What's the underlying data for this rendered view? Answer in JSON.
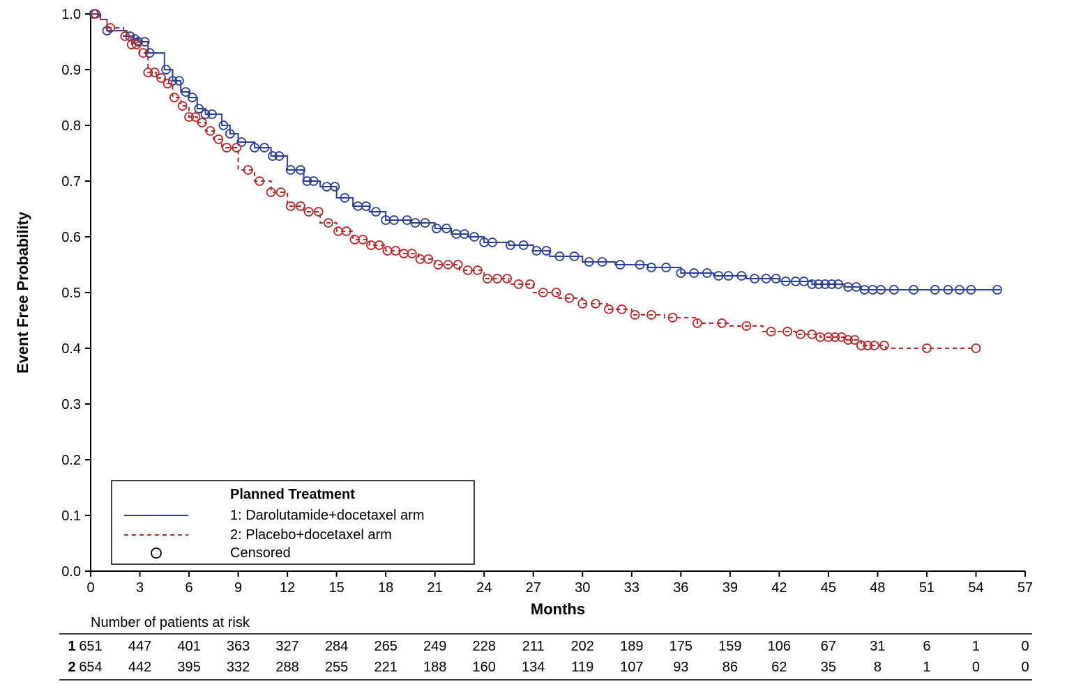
{
  "chart": {
    "type": "kaplan-meier",
    "background_color": "#ffffff",
    "axis_color": "#000000",
    "tick_color": "#000000",
    "tick_fontsize": 20,
    "label_fontsize": 22,
    "ylabel": "Event Free Probability",
    "xlabel": "Months",
    "xlim": [
      0,
      57
    ],
    "ylim": [
      0.0,
      1.0
    ],
    "xticks": [
      0,
      3,
      6,
      9,
      12,
      15,
      18,
      21,
      24,
      27,
      30,
      33,
      36,
      39,
      42,
      45,
      48,
      51,
      54,
      57
    ],
    "yticks": [
      0.0,
      0.1,
      0.2,
      0.3,
      0.4,
      0.5,
      0.6,
      0.7,
      0.8,
      0.9,
      1.0
    ],
    "censor_marker": {
      "shape": "circle",
      "radius": 6,
      "stroke_width": 1.8,
      "fill": "none"
    },
    "series": [
      {
        "id": 1,
        "label": "1: Darolutamide+docetaxel arm",
        "color": "#2a3f9e",
        "dash": "solid",
        "line_width": 2.0,
        "step_points": [
          [
            0,
            1.0
          ],
          [
            0.6,
            0.99
          ],
          [
            1.0,
            0.97
          ],
          [
            2.2,
            0.96
          ],
          [
            2.6,
            0.955
          ],
          [
            2.9,
            0.95
          ],
          [
            3.5,
            0.93
          ],
          [
            4.5,
            0.9
          ],
          [
            5.0,
            0.88
          ],
          [
            5.5,
            0.86
          ],
          [
            6.0,
            0.85
          ],
          [
            6.5,
            0.83
          ],
          [
            7.0,
            0.82
          ],
          [
            8.0,
            0.8
          ],
          [
            8.5,
            0.785
          ],
          [
            9.0,
            0.77
          ],
          [
            10.0,
            0.76
          ],
          [
            11.0,
            0.745
          ],
          [
            12.0,
            0.72
          ],
          [
            13.0,
            0.7
          ],
          [
            14.0,
            0.69
          ],
          [
            15.0,
            0.67
          ],
          [
            16.0,
            0.655
          ],
          [
            17.0,
            0.645
          ],
          [
            18.0,
            0.63
          ],
          [
            19.5,
            0.625
          ],
          [
            21.0,
            0.615
          ],
          [
            22.0,
            0.605
          ],
          [
            23.0,
            0.6
          ],
          [
            24.0,
            0.59
          ],
          [
            25.5,
            0.585
          ],
          [
            27.0,
            0.575
          ],
          [
            28.0,
            0.565
          ],
          [
            30.0,
            0.555
          ],
          [
            32.0,
            0.55
          ],
          [
            34.0,
            0.545
          ],
          [
            36.0,
            0.535
          ],
          [
            38.0,
            0.53
          ],
          [
            40.0,
            0.525
          ],
          [
            42.0,
            0.52
          ],
          [
            44.0,
            0.515
          ],
          [
            46.0,
            0.51
          ],
          [
            47.0,
            0.505
          ],
          [
            49.0,
            0.505
          ],
          [
            52.0,
            0.505
          ],
          [
            55.0,
            0.505
          ],
          [
            55.5,
            0.505
          ]
        ],
        "censored_x": [
          0.2,
          1.0,
          2.4,
          2.7,
          2.9,
          3.3,
          3.6,
          4.6,
          5.0,
          5.4,
          5.8,
          6.2,
          6.6,
          7.0,
          7.4,
          8.1,
          8.5,
          9.2,
          10.0,
          10.6,
          11.1,
          11.5,
          12.2,
          12.8,
          13.2,
          13.6,
          14.4,
          14.9,
          15.5,
          16.3,
          16.8,
          17.4,
          18.0,
          18.5,
          19.3,
          19.8,
          20.4,
          21.1,
          21.7,
          22.3,
          22.8,
          23.4,
          24.0,
          24.5,
          25.6,
          26.4,
          27.2,
          27.8,
          28.6,
          29.5,
          30.4,
          31.2,
          32.3,
          33.5,
          34.2,
          35.1,
          36.0,
          36.8,
          37.6,
          38.3,
          38.9,
          39.7,
          40.5,
          41.2,
          41.8,
          42.4,
          43.0,
          43.5,
          44.0,
          44.4,
          44.8,
          45.2,
          45.6,
          46.2,
          46.7,
          47.2,
          47.7,
          48.2,
          49.0,
          50.2,
          51.5,
          52.3,
          53.0,
          53.7,
          55.3
        ]
      },
      {
        "id": 2,
        "label": "2: Placebo+docetaxel arm",
        "color": "#b52a2a",
        "dash": "6,5",
        "line_width": 2.0,
        "step_points": [
          [
            0,
            1.0
          ],
          [
            0.5,
            0.99
          ],
          [
            1.0,
            0.975
          ],
          [
            2.0,
            0.96
          ],
          [
            2.5,
            0.945
          ],
          [
            3.0,
            0.93
          ],
          [
            3.5,
            0.895
          ],
          [
            4.0,
            0.885
          ],
          [
            4.5,
            0.875
          ],
          [
            5.0,
            0.85
          ],
          [
            5.5,
            0.835
          ],
          [
            6.0,
            0.815
          ],
          [
            6.5,
            0.805
          ],
          [
            7.0,
            0.79
          ],
          [
            7.5,
            0.775
          ],
          [
            8.0,
            0.76
          ],
          [
            9.0,
            0.72
          ],
          [
            10.0,
            0.7
          ],
          [
            11.0,
            0.68
          ],
          [
            12.0,
            0.655
          ],
          [
            13.0,
            0.645
          ],
          [
            14.0,
            0.625
          ],
          [
            15.0,
            0.61
          ],
          [
            16.0,
            0.595
          ],
          [
            17.0,
            0.585
          ],
          [
            18.0,
            0.575
          ],
          [
            19.0,
            0.57
          ],
          [
            20.0,
            0.56
          ],
          [
            21.0,
            0.55
          ],
          [
            22.5,
            0.54
          ],
          [
            24.0,
            0.525
          ],
          [
            25.5,
            0.515
          ],
          [
            27.0,
            0.5
          ],
          [
            28.5,
            0.49
          ],
          [
            30.0,
            0.48
          ],
          [
            31.5,
            0.47
          ],
          [
            33.0,
            0.46
          ],
          [
            35.0,
            0.455
          ],
          [
            37.0,
            0.445
          ],
          [
            39.0,
            0.44
          ],
          [
            41.0,
            0.43
          ],
          [
            43.0,
            0.425
          ],
          [
            44.5,
            0.42
          ],
          [
            46.0,
            0.415
          ],
          [
            47.0,
            0.405
          ],
          [
            48.5,
            0.4
          ],
          [
            52.0,
            0.4
          ],
          [
            54.0,
            0.4
          ]
        ],
        "censored_x": [
          0.3,
          1.2,
          2.1,
          2.5,
          2.8,
          3.2,
          3.5,
          3.9,
          4.3,
          4.7,
          5.1,
          5.6,
          6.0,
          6.4,
          6.8,
          7.3,
          7.8,
          8.3,
          8.9,
          9.6,
          10.3,
          11.0,
          11.6,
          12.2,
          12.8,
          13.3,
          13.9,
          14.5,
          15.1,
          15.6,
          16.1,
          16.6,
          17.1,
          17.6,
          18.1,
          18.6,
          19.1,
          19.6,
          20.1,
          20.6,
          21.2,
          21.8,
          22.4,
          23.0,
          23.6,
          24.2,
          24.8,
          25.4,
          26.1,
          26.8,
          27.6,
          28.4,
          29.2,
          30.0,
          30.8,
          31.6,
          32.4,
          33.2,
          34.2,
          35.5,
          37.0,
          38.5,
          40.0,
          41.5,
          42.5,
          43.3,
          44.0,
          44.5,
          45.0,
          45.4,
          45.8,
          46.2,
          46.6,
          47.0,
          47.4,
          47.8,
          48.4,
          51.0,
          54.0
        ]
      }
    ],
    "legend": {
      "title": "Planned Treatment",
      "censored_label": "Censored",
      "position": "lower-left",
      "box_stroke": "#000000",
      "box_fill": "#ffffff"
    }
  },
  "risk_table": {
    "title": "Number of patients at risk",
    "xticks": [
      0,
      3,
      6,
      9,
      12,
      15,
      18,
      21,
      24,
      27,
      30,
      33,
      36,
      39,
      42,
      45,
      48,
      51,
      54,
      57
    ],
    "rows": [
      {
        "label": "1",
        "values": [
          651,
          447,
          401,
          363,
          327,
          284,
          265,
          249,
          228,
          211,
          202,
          189,
          175,
          159,
          106,
          67,
          31,
          6,
          1,
          0
        ]
      },
      {
        "label": "2",
        "values": [
          654,
          442,
          395,
          332,
          288,
          255,
          221,
          188,
          160,
          134,
          119,
          107,
          93,
          86,
          62,
          35,
          8,
          1,
          0,
          0
        ]
      }
    ],
    "line_color": "#000000"
  }
}
